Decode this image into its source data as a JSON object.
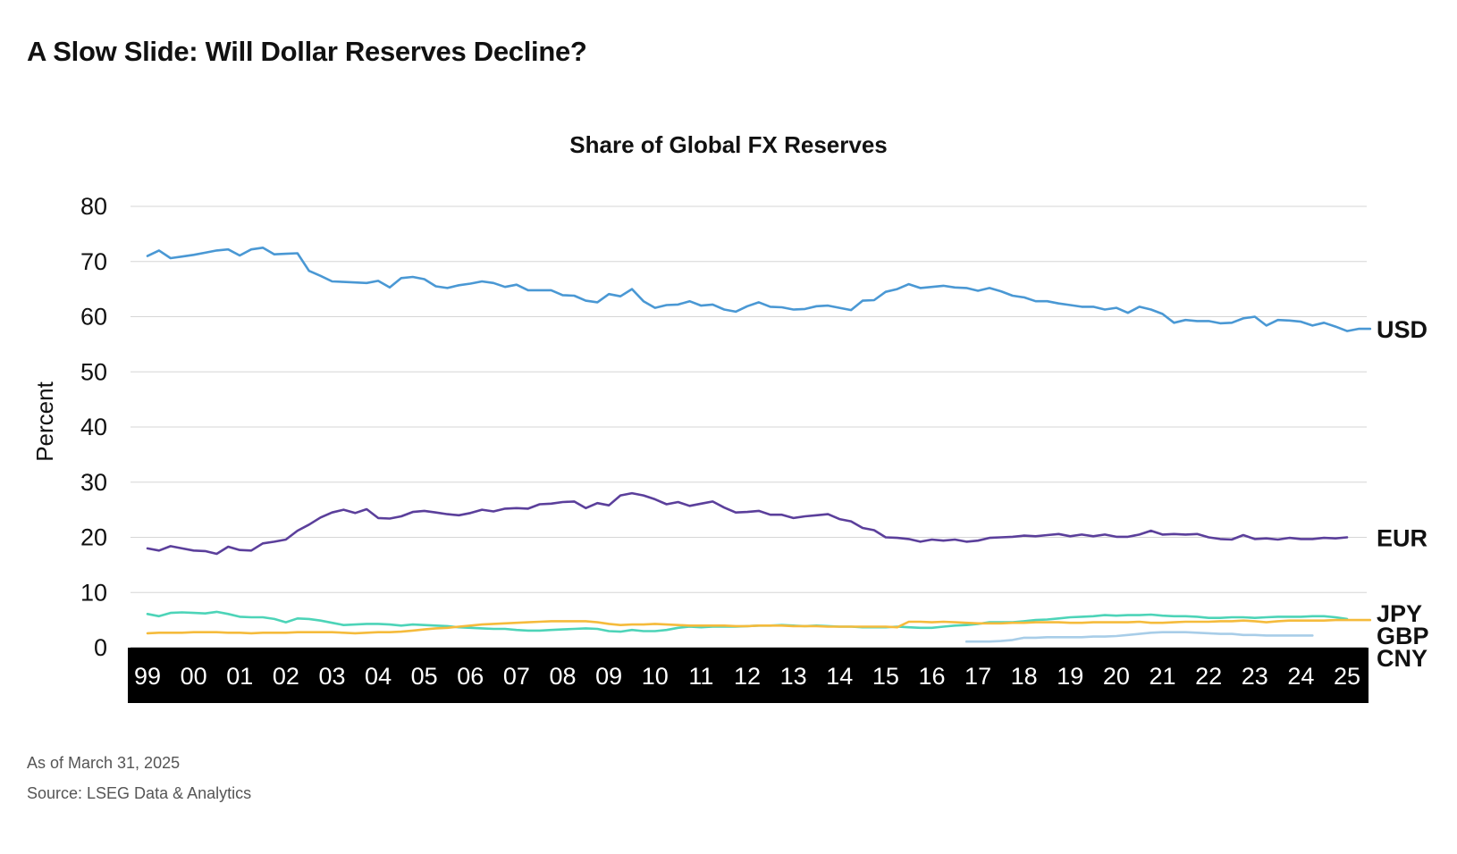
{
  "page": {
    "headline": "A Slow Slide: Will Dollar Reserves Decline?",
    "as_of": "As of March 31, 2025",
    "source": "Source: LSEG Data & Analytics"
  },
  "chart_data": {
    "type": "line",
    "title": "Share of Global FX Reserves",
    "xlabel": "",
    "ylabel": "Percent",
    "ylim": [
      0,
      80
    ],
    "yticks": [
      0,
      10,
      20,
      30,
      40,
      50,
      60,
      70,
      80
    ],
    "xlim": [
      1999,
      2025.25
    ],
    "xtick_labels": [
      "99",
      "00",
      "01",
      "02",
      "03",
      "04",
      "05",
      "06",
      "07",
      "08",
      "09",
      "10",
      "11",
      "12",
      "13",
      "14",
      "15",
      "16",
      "17",
      "18",
      "19",
      "20",
      "21",
      "22",
      "23",
      "24",
      "25"
    ],
    "grid": true,
    "legend": "direct labels at right end of lines",
    "series": [
      {
        "name": "USD",
        "color": "#4a98d4",
        "x_start": 1999,
        "x_step": 0.25,
        "values": [
          71.0,
          72.0,
          70.6,
          70.9,
          71.2,
          71.6,
          72.0,
          72.2,
          71.1,
          72.2,
          72.5,
          71.3,
          71.4,
          71.5,
          68.3,
          67.4,
          66.4,
          66.3,
          66.2,
          66.1,
          66.5,
          65.3,
          67.0,
          67.2,
          66.8,
          65.5,
          65.2,
          65.7,
          66.0,
          66.4,
          66.1,
          65.4,
          65.8,
          64.8,
          64.8,
          64.8,
          63.9,
          63.8,
          62.9,
          62.6,
          64.1,
          63.7,
          65.0,
          62.8,
          61.6,
          62.1,
          62.2,
          62.8,
          62.0,
          62.2,
          61.3,
          60.9,
          61.9,
          62.6,
          61.8,
          61.7,
          61.3,
          61.4,
          61.9,
          62.0,
          61.6,
          61.2,
          62.9,
          63.0,
          64.5,
          65.0,
          65.9,
          65.2,
          65.4,
          65.6,
          65.3,
          65.2,
          64.7,
          65.2,
          64.6,
          63.8,
          63.5,
          62.8,
          62.8,
          62.4,
          62.1,
          61.8,
          61.8,
          61.3,
          61.6,
          60.7,
          61.8,
          61.3,
          60.5,
          58.9,
          59.4,
          59.2,
          59.2,
          58.8,
          58.9,
          59.7,
          60.0,
          58.4,
          59.4,
          59.3,
          59.1,
          58.4,
          58.9,
          58.2,
          57.4,
          57.8,
          57.8
        ]
      },
      {
        "name": "EUR",
        "color": "#5b3f9b",
        "x_start": 1999,
        "x_step": 0.25,
        "values": [
          18.0,
          17.6,
          18.4,
          18.0,
          17.6,
          17.5,
          17.0,
          18.3,
          17.7,
          17.6,
          18.9,
          19.2,
          19.6,
          21.2,
          22.3,
          23.6,
          24.5,
          25.0,
          24.4,
          25.1,
          23.5,
          23.4,
          23.8,
          24.6,
          24.8,
          24.5,
          24.2,
          24.0,
          24.4,
          25.0,
          24.7,
          25.2,
          25.3,
          25.2,
          26.0,
          26.1,
          26.4,
          26.5,
          25.3,
          26.2,
          25.8,
          27.6,
          28.0,
          27.6,
          26.9,
          26.0,
          26.4,
          25.7,
          26.1,
          26.5,
          25.4,
          24.5,
          24.6,
          24.8,
          24.1,
          24.1,
          23.5,
          23.8,
          24.0,
          24.2,
          23.3,
          22.9,
          21.7,
          21.3,
          20.0,
          19.9,
          19.7,
          19.2,
          19.6,
          19.4,
          19.6,
          19.2,
          19.4,
          19.9,
          20.0,
          20.1,
          20.3,
          20.2,
          20.4,
          20.6,
          20.2,
          20.5,
          20.2,
          20.5,
          20.1,
          20.1,
          20.5,
          21.2,
          20.5,
          20.6,
          20.5,
          20.6,
          20.0,
          19.7,
          19.6,
          20.4,
          19.7,
          19.8,
          19.6,
          19.9,
          19.7,
          19.7,
          19.9,
          19.8,
          20.0
        ]
      },
      {
        "name": "JPY",
        "color": "#4dd4b8",
        "x_start": 1999,
        "x_step": 0.25,
        "values": [
          6.1,
          5.7,
          6.3,
          6.4,
          6.3,
          6.2,
          6.5,
          6.1,
          5.6,
          5.5,
          5.5,
          5.2,
          4.6,
          5.3,
          5.2,
          4.9,
          4.5,
          4.1,
          4.2,
          4.3,
          4.3,
          4.2,
          4.0,
          4.2,
          4.1,
          4.0,
          3.9,
          3.7,
          3.6,
          3.5,
          3.4,
          3.4,
          3.2,
          3.1,
          3.1,
          3.2,
          3.3,
          3.4,
          3.5,
          3.4,
          3.0,
          2.9,
          3.2,
          3.0,
          3.0,
          3.2,
          3.6,
          3.8,
          3.7,
          3.8,
          3.8,
          3.8,
          3.9,
          4.0,
          4.0,
          4.1,
          4.0,
          3.9,
          4.0,
          3.9,
          3.8,
          3.8,
          3.7,
          3.7,
          3.7,
          3.8,
          3.7,
          3.6,
          3.6,
          3.8,
          4.0,
          4.1,
          4.3,
          4.6,
          4.6,
          4.6,
          4.8,
          5.0,
          5.1,
          5.3,
          5.5,
          5.6,
          5.7,
          5.9,
          5.8,
          5.9,
          5.9,
          6.0,
          5.8,
          5.7,
          5.7,
          5.6,
          5.4,
          5.4,
          5.5,
          5.5,
          5.4,
          5.5,
          5.6,
          5.6,
          5.6,
          5.7,
          5.7,
          5.5,
          5.2
        ]
      },
      {
        "name": "GBP",
        "color": "#f5bb3c",
        "x_start": 1999,
        "x_step": 0.25,
        "values": [
          2.6,
          2.7,
          2.7,
          2.7,
          2.8,
          2.8,
          2.8,
          2.7,
          2.7,
          2.6,
          2.7,
          2.7,
          2.7,
          2.8,
          2.8,
          2.8,
          2.8,
          2.7,
          2.6,
          2.7,
          2.8,
          2.8,
          2.9,
          3.1,
          3.3,
          3.5,
          3.6,
          3.8,
          4.0,
          4.2,
          4.3,
          4.4,
          4.5,
          4.6,
          4.7,
          4.8,
          4.8,
          4.8,
          4.8,
          4.6,
          4.3,
          4.1,
          4.2,
          4.2,
          4.3,
          4.2,
          4.1,
          4.0,
          4.0,
          4.0,
          4.0,
          3.9,
          3.9,
          4.0,
          4.0,
          4.0,
          3.9,
          3.9,
          3.9,
          3.8,
          3.8,
          3.8,
          3.8,
          3.8,
          3.8,
          3.7,
          4.7,
          4.7,
          4.6,
          4.7,
          4.6,
          4.5,
          4.4,
          4.4,
          4.4,
          4.5,
          4.5,
          4.6,
          4.6,
          4.6,
          4.5,
          4.5,
          4.6,
          4.6,
          4.6,
          4.6,
          4.7,
          4.5,
          4.5,
          4.6,
          4.7,
          4.7,
          4.7,
          4.8,
          4.8,
          4.9,
          4.8,
          4.6,
          4.8,
          4.9,
          4.9,
          4.9,
          4.9,
          5.0,
          5.0,
          5.0,
          5.0
        ]
      },
      {
        "name": "CNY",
        "color": "#a8cde8",
        "x_start": 2016.75,
        "x_step": 0.25,
        "values": [
          1.1,
          1.1,
          1.1,
          1.2,
          1.4,
          1.8,
          1.8,
          1.9,
          1.9,
          1.9,
          1.9,
          2.0,
          2.0,
          2.1,
          2.3,
          2.5,
          2.7,
          2.8,
          2.8,
          2.8,
          2.7,
          2.6,
          2.5,
          2.5,
          2.3,
          2.3,
          2.2,
          2.2,
          2.2,
          2.2,
          2.2
        ]
      }
    ]
  }
}
